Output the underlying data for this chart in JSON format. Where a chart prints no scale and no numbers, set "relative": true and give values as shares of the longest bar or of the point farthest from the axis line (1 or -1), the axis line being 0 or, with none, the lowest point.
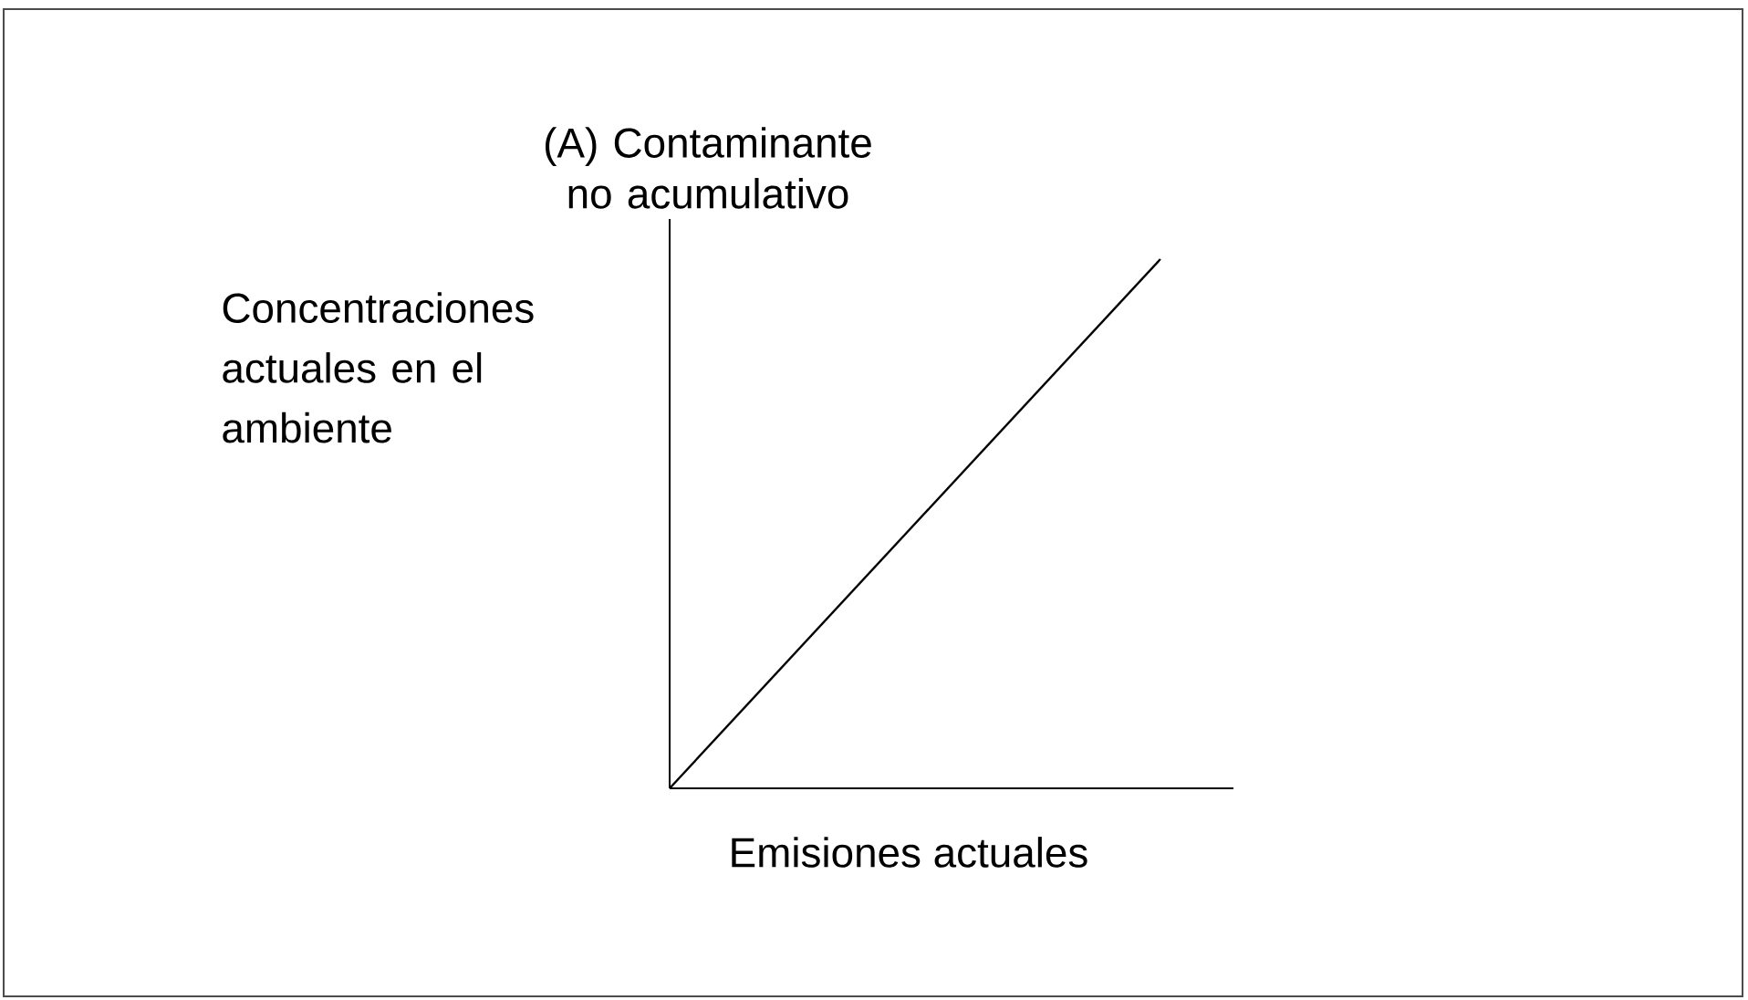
{
  "chart_data": {
    "type": "line",
    "title": "(A) Contaminante no acumulativo",
    "xlabel": "Emisiones actuales",
    "ylabel": "Concentraciones actuales en el ambiente",
    "categories": [
      null,
      null
    ],
    "relative": true,
    "series": [
      {
        "color": "#000000",
        "values": [
          0,
          1
        ]
      }
    ],
    "marker": "none",
    "line_style": "solid"
  }
}
